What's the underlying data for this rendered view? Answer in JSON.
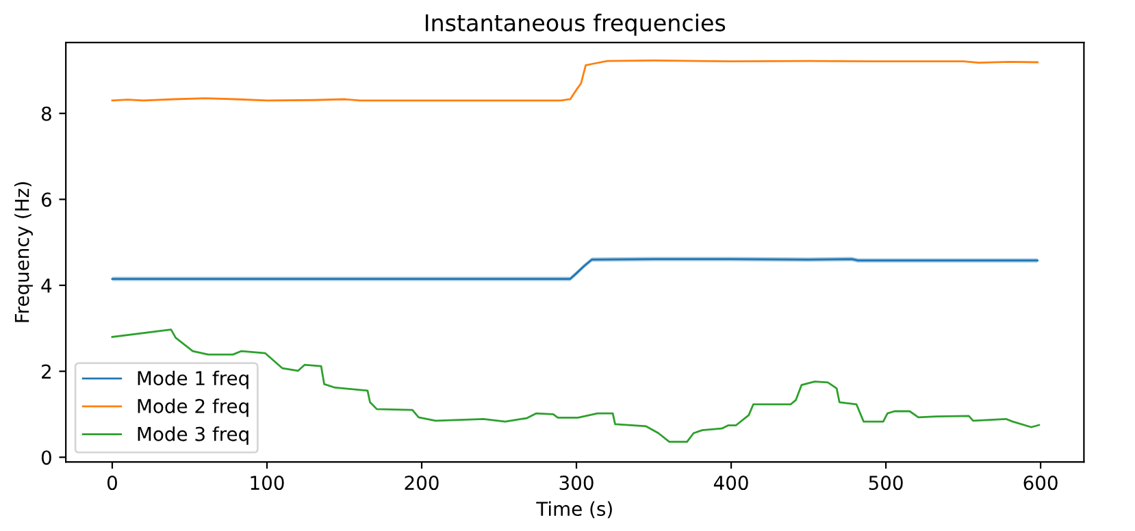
{
  "chart_data": {
    "type": "line",
    "title": "Instantaneous frequencies",
    "xlabel": "Time (s)",
    "ylabel": "Frequency (Hz)",
    "xlim": [
      -30,
      628
    ],
    "ylim": [
      -0.11,
      9.65
    ],
    "xticks": [
      0,
      100,
      200,
      300,
      400,
      500,
      600
    ],
    "yticks": [
      0,
      2,
      4,
      6,
      8
    ],
    "grid": false,
    "legend": "bottom left",
    "line_style": "solid",
    "marker": "none",
    "series": [
      {
        "name": "Mode 1 freq",
        "color": "#1f77b4",
        "x": [
          0,
          100,
          200,
          296,
          300,
          305,
          310,
          350,
          400,
          450,
          478,
          482,
          550,
          598
        ],
        "values": [
          4.15,
          4.15,
          4.15,
          4.15,
          4.28,
          4.45,
          4.6,
          4.61,
          4.61,
          4.6,
          4.61,
          4.58,
          4.58,
          4.58
        ],
        "lower": [
          4.1,
          4.1,
          4.1,
          4.1,
          4.23,
          4.4,
          4.55,
          4.56,
          4.56,
          4.55,
          4.56,
          4.53,
          4.53,
          4.53
        ],
        "upper": [
          4.2,
          4.2,
          4.2,
          4.2,
          4.33,
          4.5,
          4.65,
          4.66,
          4.66,
          4.65,
          4.66,
          4.63,
          4.63,
          4.63
        ]
      },
      {
        "name": "Mode 2 freq",
        "color": "#ff7f0e",
        "x": [
          0,
          10,
          20,
          40,
          60,
          80,
          100,
          130,
          150,
          160,
          200,
          250,
          290,
          296,
          300,
          303,
          306,
          310,
          320,
          350,
          400,
          450,
          500,
          550,
          560,
          580,
          598
        ],
        "values": [
          8.3,
          8.32,
          8.3,
          8.33,
          8.35,
          8.33,
          8.3,
          8.31,
          8.33,
          8.3,
          8.3,
          8.3,
          8.3,
          8.33,
          8.55,
          8.7,
          9.12,
          9.15,
          9.22,
          9.23,
          9.21,
          9.22,
          9.21,
          9.21,
          9.18,
          9.2,
          9.19
        ]
      },
      {
        "name": "Mode 3 freq",
        "color": "#2ca02c",
        "x": [
          0,
          38,
          41,
          52,
          62,
          78,
          83.5,
          98.9,
          110,
          120,
          124.3,
          135,
          137,
          144,
          165,
          166.6,
          171,
          194,
          198,
          209,
          240,
          254,
          268,
          273.9,
          285,
          288,
          301,
          313.6,
          323.5,
          325,
          345,
          353,
          360,
          371.5,
          375.7,
          381.4,
          394,
          398,
          403,
          411.4,
          414.3,
          438.4,
          441.8,
          445.5,
          454,
          462.5,
          468.2,
          470,
          481,
          485.6,
          498.3,
          501,
          505.5,
          515.4,
          521,
          532.4,
          553.6,
          556.4,
          577.6,
          582,
          594,
          599
        ],
        "values": [
          2.8,
          2.97,
          2.78,
          2.47,
          2.39,
          2.39,
          2.47,
          2.42,
          2.07,
          2.01,
          2.15,
          2.12,
          1.7,
          1.62,
          1.55,
          1.28,
          1.12,
          1.1,
          0.93,
          0.85,
          0.89,
          0.83,
          0.91,
          1.02,
          1.0,
          0.92,
          0.92,
          1.02,
          1.02,
          0.77,
          0.72,
          0.56,
          0.36,
          0.36,
          0.56,
          0.63,
          0.67,
          0.74,
          0.74,
          0.98,
          1.23,
          1.23,
          1.33,
          1.68,
          1.76,
          1.74,
          1.6,
          1.28,
          1.23,
          0.83,
          0.83,
          1.02,
          1.07,
          1.07,
          0.93,
          0.95,
          0.96,
          0.85,
          0.89,
          0.83,
          0.7,
          0.75
        ]
      }
    ]
  }
}
